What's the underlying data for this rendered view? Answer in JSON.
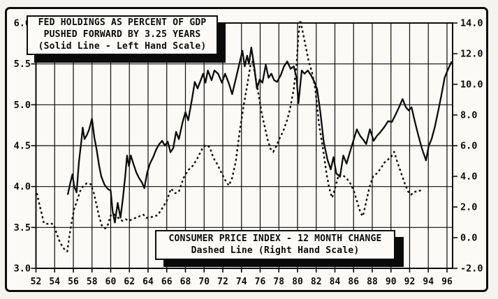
{
  "figure": {
    "background": "#fbfaf7",
    "ink": "#0c0c0c",
    "description": "Scanned black-and-white line chart comparing Fed holdings (solid, left scale) with CPI 12-month change (dashed, right scale), 1952-1996"
  },
  "title_box": {
    "line1": "FED HOLDINGS AS PERCENT OF GDP",
    "line2": "PUSHED FORWARD BY 3.25 YEARS",
    "line3": "(Solid Line - Left Hand Scale)"
  },
  "legend_box": {
    "line1": "CONSUMER PRICE INDEX - 12 MONTH CHANGE",
    "line2": "Dashed Line  (Right Hand Scale)"
  },
  "chart_data": {
    "type": "line",
    "grid": "on",
    "x_axis": {
      "ticks": [
        "52",
        "54",
        "56",
        "58",
        "60",
        "62",
        "64",
        "66",
        "68",
        "70",
        "72",
        "74",
        "76",
        "78",
        "80",
        "82",
        "84",
        "86",
        "88",
        "90",
        "92",
        "94",
        "96"
      ],
      "range": [
        52,
        96.6
      ]
    },
    "left_axis": {
      "ticks": [
        "6.0",
        "5.5",
        "5.0",
        "4.5",
        "4.0",
        "3.5",
        "3.0"
      ],
      "range": [
        3.0,
        6.0
      ]
    },
    "right_axis": {
      "ticks": [
        "14.0",
        "12.0",
        "10.0",
        "8.0",
        "6.0",
        "4.0",
        "2.0",
        "0.0",
        "-2.0"
      ],
      "range": [
        -2.0,
        14.0
      ]
    },
    "series": [
      {
        "name": "Fed holdings as percent of GDP pushed forward by 3.25 years",
        "style": "solid",
        "scale": "left",
        "points": [
          [
            55.4,
            3.9
          ],
          [
            55.65,
            4.03
          ],
          [
            55.9,
            4.15
          ],
          [
            56.1,
            4.0
          ],
          [
            56.35,
            3.93
          ],
          [
            56.6,
            4.3
          ],
          [
            56.85,
            4.55
          ],
          [
            57.0,
            4.72
          ],
          [
            57.2,
            4.58
          ],
          [
            57.45,
            4.63
          ],
          [
            57.7,
            4.7
          ],
          [
            58.0,
            4.83
          ],
          [
            58.25,
            4.6
          ],
          [
            58.5,
            4.45
          ],
          [
            58.75,
            4.26
          ],
          [
            59.0,
            4.12
          ],
          [
            59.35,
            4.02
          ],
          [
            59.7,
            3.97
          ],
          [
            60.0,
            3.95
          ],
          [
            60.2,
            3.7
          ],
          [
            60.45,
            3.56
          ],
          [
            60.75,
            3.8
          ],
          [
            61.05,
            3.62
          ],
          [
            61.3,
            3.85
          ],
          [
            61.55,
            4.12
          ],
          [
            61.75,
            4.38
          ],
          [
            61.95,
            4.25
          ],
          [
            62.15,
            4.38
          ],
          [
            62.45,
            4.27
          ],
          [
            62.75,
            4.17
          ],
          [
            63.05,
            4.1
          ],
          [
            63.35,
            4.05
          ],
          [
            63.6,
            3.98
          ],
          [
            63.9,
            4.17
          ],
          [
            64.2,
            4.28
          ],
          [
            64.55,
            4.36
          ],
          [
            64.85,
            4.45
          ],
          [
            65.2,
            4.52
          ],
          [
            65.5,
            4.56
          ],
          [
            65.8,
            4.5
          ],
          [
            66.1,
            4.55
          ],
          [
            66.4,
            4.42
          ],
          [
            66.7,
            4.47
          ],
          [
            67.0,
            4.67
          ],
          [
            67.3,
            4.58
          ],
          [
            67.7,
            4.79
          ],
          [
            68.0,
            4.91
          ],
          [
            68.3,
            4.81
          ],
          [
            68.7,
            5.07
          ],
          [
            69.0,
            5.28
          ],
          [
            69.3,
            5.2
          ],
          [
            69.6,
            5.29
          ],
          [
            69.9,
            5.38
          ],
          [
            70.15,
            5.27
          ],
          [
            70.4,
            5.42
          ],
          [
            70.8,
            5.3
          ],
          [
            71.1,
            5.42
          ],
          [
            71.5,
            5.38
          ],
          [
            71.9,
            5.27
          ],
          [
            72.25,
            5.38
          ],
          [
            72.65,
            5.26
          ],
          [
            73.0,
            5.13
          ],
          [
            73.4,
            5.32
          ],
          [
            73.75,
            5.49
          ],
          [
            74.1,
            5.66
          ],
          [
            74.35,
            5.47
          ],
          [
            74.6,
            5.6
          ],
          [
            74.8,
            5.5
          ],
          [
            75.05,
            5.7
          ],
          [
            75.35,
            5.48
          ],
          [
            75.65,
            5.2
          ],
          [
            75.95,
            5.31
          ],
          [
            76.25,
            5.27
          ],
          [
            76.6,
            5.49
          ],
          [
            76.9,
            5.33
          ],
          [
            77.2,
            5.38
          ],
          [
            77.5,
            5.3
          ],
          [
            77.8,
            5.28
          ],
          [
            78.2,
            5.36
          ],
          [
            78.55,
            5.47
          ],
          [
            78.9,
            5.53
          ],
          [
            79.25,
            5.44
          ],
          [
            79.6,
            5.47
          ],
          [
            79.9,
            5.33
          ],
          [
            80.1,
            5.02
          ],
          [
            80.45,
            5.42
          ],
          [
            80.75,
            5.38
          ],
          [
            81.1,
            5.42
          ],
          [
            81.45,
            5.36
          ],
          [
            81.8,
            5.28
          ],
          [
            82.1,
            5.19
          ],
          [
            82.45,
            4.9
          ],
          [
            82.8,
            4.55
          ],
          [
            83.2,
            4.33
          ],
          [
            83.55,
            4.21
          ],
          [
            83.85,
            4.36
          ],
          [
            84.15,
            4.16
          ],
          [
            84.55,
            4.12
          ],
          [
            84.9,
            4.38
          ],
          [
            85.25,
            4.28
          ],
          [
            85.6,
            4.42
          ],
          [
            85.95,
            4.55
          ],
          [
            86.35,
            4.7
          ],
          [
            86.7,
            4.62
          ],
          [
            87.05,
            4.57
          ],
          [
            87.35,
            4.52
          ],
          [
            87.75,
            4.7
          ],
          [
            88.15,
            4.56
          ],
          [
            88.5,
            4.62
          ],
          [
            88.9,
            4.67
          ],
          [
            89.3,
            4.73
          ],
          [
            89.7,
            4.8
          ],
          [
            90.1,
            4.79
          ],
          [
            90.5,
            4.88
          ],
          [
            90.9,
            4.98
          ],
          [
            91.25,
            5.07
          ],
          [
            91.6,
            4.97
          ],
          [
            91.9,
            4.93
          ],
          [
            92.2,
            4.97
          ],
          [
            92.55,
            4.8
          ],
          [
            92.9,
            4.64
          ],
          [
            93.3,
            4.47
          ],
          [
            93.75,
            4.32
          ],
          [
            94.05,
            4.5
          ],
          [
            94.35,
            4.58
          ],
          [
            94.7,
            4.73
          ],
          [
            95.05,
            4.92
          ],
          [
            95.4,
            5.12
          ],
          [
            95.75,
            5.33
          ],
          [
            96.1,
            5.43
          ],
          [
            96.5,
            5.53
          ]
        ]
      },
      {
        "name": "Consumer Price Index - 12 month change",
        "style": "dashed",
        "scale": "right",
        "points": [
          [
            52.1,
            2.9
          ],
          [
            52.35,
            2.2
          ],
          [
            52.6,
            1.6
          ],
          [
            52.85,
            0.95
          ],
          [
            53.2,
            0.9
          ],
          [
            53.55,
            0.95
          ],
          [
            53.9,
            0.85
          ],
          [
            54.2,
            0.3
          ],
          [
            54.5,
            -0.2
          ],
          [
            54.8,
            -0.55
          ],
          [
            55.1,
            -0.8
          ],
          [
            55.35,
            -0.9
          ],
          [
            55.6,
            0.2
          ],
          [
            55.85,
            1.1
          ],
          [
            56.1,
            1.9
          ],
          [
            56.4,
            2.4
          ],
          [
            56.7,
            3.0
          ],
          [
            57.1,
            3.4
          ],
          [
            57.45,
            3.55
          ],
          [
            57.85,
            3.5
          ],
          [
            58.2,
            2.9
          ],
          [
            58.5,
            2.1
          ],
          [
            58.75,
            1.4
          ],
          [
            59.05,
            0.8
          ],
          [
            59.4,
            0.6
          ],
          [
            59.7,
            0.85
          ],
          [
            60.0,
            1.45
          ],
          [
            60.3,
            1.55
          ],
          [
            60.65,
            1.4
          ],
          [
            60.95,
            1.2
          ],
          [
            61.25,
            1.1
          ],
          [
            61.6,
            1.2
          ],
          [
            61.95,
            1.1
          ],
          [
            62.3,
            1.2
          ],
          [
            62.7,
            1.3
          ],
          [
            63.1,
            1.4
          ],
          [
            63.5,
            1.5
          ],
          [
            63.8,
            1.3
          ],
          [
            64.2,
            1.3
          ],
          [
            64.6,
            1.4
          ],
          [
            65.0,
            1.45
          ],
          [
            65.5,
            1.9
          ],
          [
            66.0,
            2.4
          ],
          [
            66.45,
            3.2
          ],
          [
            66.9,
            2.9
          ],
          [
            67.3,
            3.0
          ],
          [
            67.8,
            3.9
          ],
          [
            68.3,
            4.4
          ],
          [
            68.8,
            4.7
          ],
          [
            69.3,
            5.2
          ],
          [
            69.8,
            5.8
          ],
          [
            70.2,
            6.05
          ],
          [
            70.6,
            5.9
          ],
          [
            71.0,
            5.2
          ],
          [
            71.4,
            4.8
          ],
          [
            71.8,
            4.3
          ],
          [
            72.2,
            3.8
          ],
          [
            72.65,
            3.4
          ],
          [
            73.0,
            3.9
          ],
          [
            73.4,
            5.0
          ],
          [
            73.8,
            6.9
          ],
          [
            74.2,
            8.5
          ],
          [
            74.6,
            9.9
          ],
          [
            74.95,
            11.2
          ],
          [
            75.2,
            11.5
          ],
          [
            75.55,
            10.3
          ],
          [
            75.9,
            9.1
          ],
          [
            76.2,
            8.0
          ],
          [
            76.5,
            7.2
          ],
          [
            76.8,
            6.4
          ],
          [
            77.1,
            5.8
          ],
          [
            77.4,
            5.6
          ],
          [
            77.75,
            6.0
          ],
          [
            78.1,
            6.5
          ],
          [
            78.5,
            7.0
          ],
          [
            78.9,
            7.7
          ],
          [
            79.2,
            8.4
          ],
          [
            79.6,
            9.7
          ],
          [
            79.9,
            11.3
          ],
          [
            80.1,
            13.2
          ],
          [
            80.3,
            14.2
          ],
          [
            80.6,
            13.3
          ],
          [
            80.9,
            12.4
          ],
          [
            81.2,
            11.5
          ],
          [
            81.55,
            10.8
          ],
          [
            81.9,
            9.7
          ],
          [
            82.3,
            7.4
          ],
          [
            82.7,
            5.9
          ],
          [
            83.1,
            4.2
          ],
          [
            83.4,
            3.2
          ],
          [
            83.7,
            2.6
          ],
          [
            84.05,
            3.3
          ],
          [
            84.4,
            4.1
          ],
          [
            84.8,
            4.1
          ],
          [
            85.2,
            3.9
          ],
          [
            85.6,
            3.6
          ],
          [
            86.0,
            3.1
          ],
          [
            86.4,
            2.3
          ],
          [
            86.75,
            1.6
          ],
          [
            87.0,
            1.4
          ],
          [
            87.3,
            2.2
          ],
          [
            87.7,
            3.3
          ],
          [
            88.1,
            4.0
          ],
          [
            88.5,
            4.2
          ],
          [
            88.9,
            4.5
          ],
          [
            89.3,
            4.9
          ],
          [
            89.7,
            5.1
          ],
          [
            90.05,
            5.3
          ],
          [
            90.35,
            5.6
          ],
          [
            90.7,
            4.9
          ],
          [
            91.1,
            4.2
          ],
          [
            91.5,
            3.5
          ],
          [
            91.85,
            3.0
          ],
          [
            92.15,
            2.8
          ],
          [
            92.5,
            3.0
          ],
          [
            92.9,
            3.0
          ],
          [
            93.2,
            3.1
          ]
        ]
      }
    ]
  }
}
